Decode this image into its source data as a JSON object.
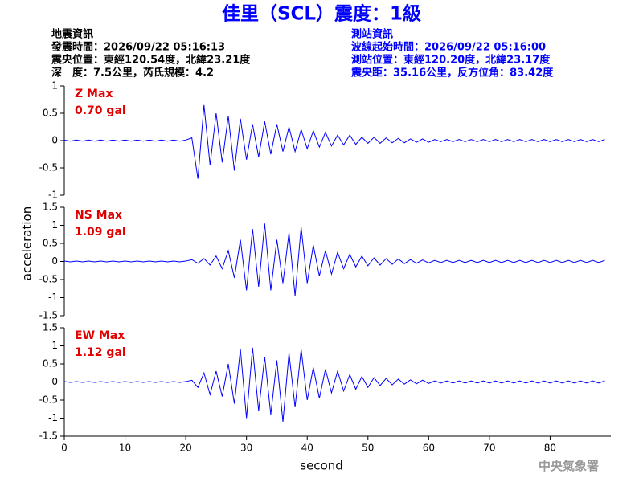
{
  "header": {
    "title": "佳里（SCL）震度：1級",
    "left": [
      "地震資訊",
      "發震時間：2026/09/22 05:16:13",
      "震央位置：東經120.54度，北緯23.21度",
      "深　度：7.5公里，芮氏規模：4.2"
    ],
    "right": [
      "測站資訊",
      "波線起始時間：2026/09/22 05:16:00",
      "測站位置：東經120.20度，北緯23.17度",
      "震央距：35.16公里，反方位角：83.42度"
    ],
    "footer": "中央氣象署",
    "ylabel": "acceleration"
  },
  "chart_data": [
    {
      "type": "line",
      "color": "#0000ff",
      "annotations": [
        "Z Max",
        "0.70 gal"
      ],
      "xlim": [
        0,
        90
      ],
      "ylim": [
        -1,
        1
      ],
      "yticks": [
        -1,
        -0.5,
        0,
        0.5,
        1
      ],
      "x": [
        0,
        1,
        2,
        3,
        4,
        5,
        6,
        7,
        8,
        9,
        10,
        11,
        12,
        13,
        14,
        15,
        16,
        17,
        18,
        19,
        20,
        21,
        22,
        23,
        24,
        25,
        26,
        27,
        28,
        29,
        30,
        31,
        32,
        33,
        34,
        35,
        36,
        37,
        38,
        39,
        40,
        41,
        42,
        43,
        44,
        45,
        46,
        47,
        48,
        49,
        50,
        51,
        52,
        53,
        54,
        55,
        56,
        57,
        58,
        59,
        60,
        61,
        62,
        63,
        64,
        65,
        66,
        67,
        68,
        69,
        70,
        71,
        72,
        73,
        74,
        75,
        76,
        77,
        78,
        79,
        80,
        81,
        82,
        83,
        84,
        85,
        86,
        87,
        88,
        89
      ],
      "values": [
        0.01,
        -0.01,
        0.01,
        -0.01,
        0.01,
        -0.01,
        0.01,
        -0.01,
        0.01,
        -0.01,
        0.01,
        -0.01,
        0.01,
        -0.01,
        0.01,
        -0.01,
        0.01,
        -0.01,
        0.01,
        -0.01,
        0.01,
        0.05,
        -0.7,
        0.65,
        -0.45,
        0.5,
        -0.4,
        0.45,
        -0.55,
        0.4,
        -0.35,
        0.3,
        -0.3,
        0.35,
        -0.25,
        0.3,
        -0.2,
        0.25,
        -0.2,
        0.2,
        -0.15,
        0.18,
        -0.12,
        0.15,
        -0.1,
        0.1,
        -0.08,
        0.1,
        -0.07,
        0.06,
        -0.05,
        0.06,
        -0.05,
        0.05,
        -0.04,
        0.04,
        -0.04,
        0.03,
        -0.03,
        0.03,
        -0.03,
        0.02,
        -0.02,
        0.02,
        -0.02,
        0.02,
        -0.02,
        0.02,
        -0.02,
        0.02,
        -0.02,
        0.02,
        -0.02,
        0.02,
        -0.02,
        0.02,
        -0.02,
        0.02,
        -0.02,
        0.02,
        -0.02,
        0.02,
        -0.02,
        0.02,
        -0.02,
        0.02,
        -0.02,
        0.02,
        -0.02,
        0.02
      ]
    },
    {
      "type": "line",
      "color": "#0000ff",
      "annotations": [
        "NS Max",
        "1.09 gal"
      ],
      "xlim": [
        0,
        90
      ],
      "ylim": [
        -1.5,
        1.5
      ],
      "yticks": [
        -1.5,
        -1,
        -0.5,
        0,
        0.5,
        1,
        1.5
      ],
      "x": [
        0,
        1,
        2,
        3,
        4,
        5,
        6,
        7,
        8,
        9,
        10,
        11,
        12,
        13,
        14,
        15,
        16,
        17,
        18,
        19,
        20,
        21,
        22,
        23,
        24,
        25,
        26,
        27,
        28,
        29,
        30,
        31,
        32,
        33,
        34,
        35,
        36,
        37,
        38,
        39,
        40,
        41,
        42,
        43,
        44,
        45,
        46,
        47,
        48,
        49,
        50,
        51,
        52,
        53,
        54,
        55,
        56,
        57,
        58,
        59,
        60,
        61,
        62,
        63,
        64,
        65,
        66,
        67,
        68,
        69,
        70,
        71,
        72,
        73,
        74,
        75,
        76,
        77,
        78,
        79,
        80,
        81,
        82,
        83,
        84,
        85,
        86,
        87,
        88,
        89
      ],
      "values": [
        0.01,
        -0.01,
        0.01,
        -0.01,
        0.01,
        -0.01,
        0.01,
        -0.01,
        0.01,
        -0.01,
        0.01,
        -0.01,
        0.01,
        -0.01,
        0.01,
        -0.01,
        0.01,
        -0.01,
        0.01,
        -0.01,
        0.01,
        0.05,
        -0.05,
        0.08,
        -0.1,
        0.15,
        -0.2,
        0.3,
        -0.45,
        0.6,
        -0.8,
        0.9,
        -0.7,
        1.05,
        -0.8,
        0.6,
        -0.6,
        0.8,
        -0.95,
        0.95,
        -0.6,
        0.45,
        -0.4,
        0.3,
        -0.35,
        0.25,
        -0.2,
        0.2,
        -0.15,
        0.15,
        -0.12,
        0.1,
        -0.1,
        0.08,
        -0.08,
        0.07,
        -0.06,
        0.05,
        -0.05,
        0.04,
        -0.04,
        0.03,
        -0.03,
        0.03,
        -0.03,
        0.03,
        -0.03,
        0.03,
        -0.03,
        0.03,
        -0.03,
        0.03,
        -0.03,
        0.03,
        -0.03,
        0.03,
        -0.03,
        0.03,
        -0.03,
        0.03,
        -0.03,
        0.03,
        -0.03,
        0.03,
        -0.03,
        0.03,
        -0.03,
        0.03,
        -0.03,
        0.03
      ]
    },
    {
      "type": "line",
      "color": "#0000ff",
      "annotations": [
        "EW Max",
        "1.12 gal"
      ],
      "xlim": [
        0,
        90
      ],
      "ylim": [
        -1.5,
        1.5
      ],
      "yticks": [
        -1.5,
        -1,
        -0.5,
        0,
        0.5,
        1,
        1.5
      ],
      "xticks": [
        0,
        10,
        20,
        30,
        40,
        50,
        60,
        70,
        80
      ],
      "xlabel": "second",
      "x": [
        0,
        1,
        2,
        3,
        4,
        5,
        6,
        7,
        8,
        9,
        10,
        11,
        12,
        13,
        14,
        15,
        16,
        17,
        18,
        19,
        20,
        21,
        22,
        23,
        24,
        25,
        26,
        27,
        28,
        29,
        30,
        31,
        32,
        33,
        34,
        35,
        36,
        37,
        38,
        39,
        40,
        41,
        42,
        43,
        44,
        45,
        46,
        47,
        48,
        49,
        50,
        51,
        52,
        53,
        54,
        55,
        56,
        57,
        58,
        59,
        60,
        61,
        62,
        63,
        64,
        65,
        66,
        67,
        68,
        69,
        70,
        71,
        72,
        73,
        74,
        75,
        76,
        77,
        78,
        79,
        80,
        81,
        82,
        83,
        84,
        85,
        86,
        87,
        88,
        89
      ],
      "values": [
        0.01,
        -0.01,
        0.01,
        -0.01,
        0.01,
        -0.01,
        0.01,
        -0.01,
        0.01,
        -0.01,
        0.01,
        -0.01,
        0.01,
        -0.01,
        0.01,
        -0.01,
        0.01,
        -0.01,
        0.01,
        -0.01,
        0.01,
        0.05,
        -0.15,
        0.25,
        -0.35,
        0.3,
        -0.4,
        0.5,
        -0.6,
        0.9,
        -1.0,
        0.95,
        -0.8,
        0.7,
        -0.9,
        0.6,
        -1.1,
        0.8,
        -0.7,
        0.9,
        -0.5,
        0.4,
        -0.45,
        0.35,
        -0.3,
        0.3,
        -0.25,
        0.2,
        -0.2,
        0.15,
        -0.15,
        0.12,
        -0.1,
        0.1,
        -0.08,
        0.08,
        -0.06,
        0.06,
        -0.05,
        0.05,
        -0.04,
        0.03,
        -0.03,
        0.03,
        -0.03,
        0.03,
        -0.03,
        0.03,
        -0.03,
        0.03,
        -0.03,
        0.03,
        -0.03,
        0.03,
        -0.03,
        0.03,
        -0.03,
        0.03,
        -0.03,
        0.03,
        -0.03,
        0.03,
        -0.03,
        0.03,
        -0.03,
        0.03,
        -0.03,
        0.03,
        -0.03,
        0.03
      ]
    }
  ]
}
